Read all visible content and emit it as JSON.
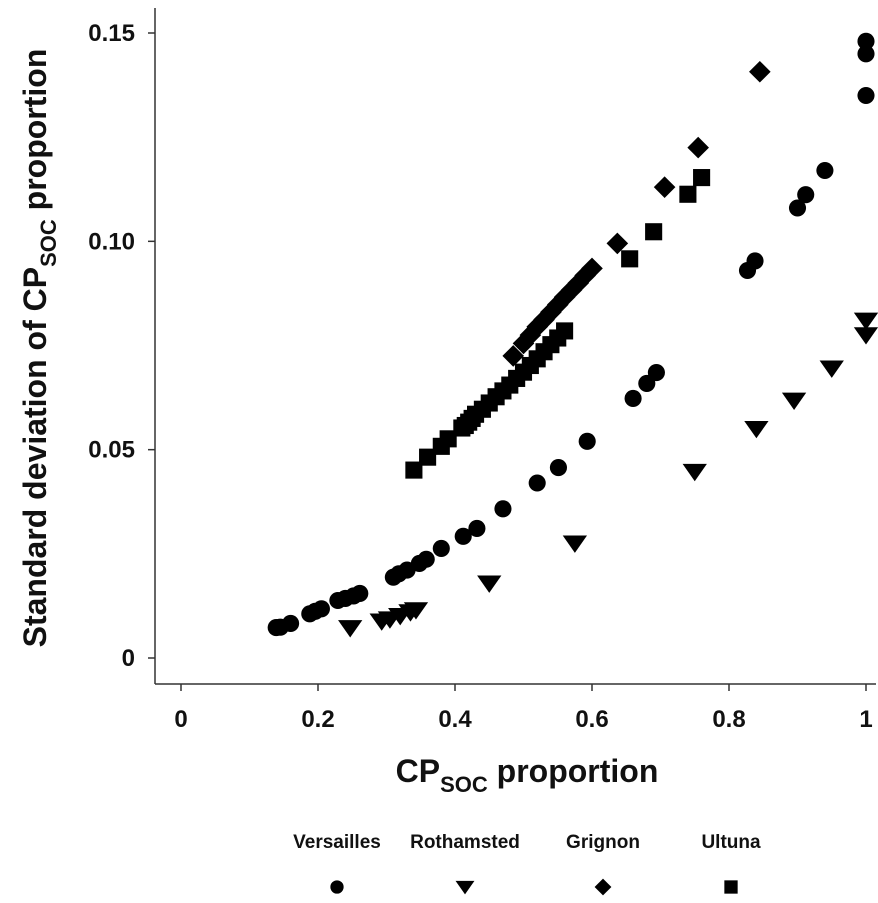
{
  "chart_data": {
    "type": "scatter",
    "xlabel_main": "CP",
    "xlabel_sub": "SOC",
    "xlabel_rest": " proportion",
    "ylabel_main": "Standard deviation of CP",
    "ylabel_sub": "SOC",
    "ylabel_rest": " proportion",
    "xlim": [
      0,
      1
    ],
    "ylim": [
      0,
      0.15
    ],
    "xticks": [
      {
        "value": 0,
        "label": "0"
      },
      {
        "value": 0.2,
        "label": "0.2"
      },
      {
        "value": 0.4,
        "label": "0.4"
      },
      {
        "value": 0.6,
        "label": "0.6"
      },
      {
        "value": 0.8,
        "label": "0.8"
      },
      {
        "value": 1,
        "label": "1"
      }
    ],
    "yticks": [
      {
        "value": 0,
        "label": "0"
      },
      {
        "value": 0.05,
        "label": "0.05"
      },
      {
        "value": 0.1,
        "label": "0.10"
      },
      {
        "value": 0.15,
        "label": "0.15"
      }
    ],
    "grid": false,
    "legend_position": "bottom",
    "series": [
      {
        "name": "Versailles",
        "marker": "circle",
        "color": "#000000",
        "x": [
          0.139,
          0.145,
          0.16,
          0.188,
          0.196,
          0.205,
          0.229,
          0.24,
          0.252,
          0.261,
          0.31,
          0.318,
          0.33,
          0.348,
          0.358,
          0.38,
          0.412,
          0.432,
          0.47,
          0.52,
          0.551,
          0.593,
          0.66,
          0.68,
          0.694,
          0.827,
          0.838,
          0.9,
          0.912,
          0.94,
          1.0,
          1.0,
          1.0
        ],
        "y": [
          0.0073,
          0.0074,
          0.0083,
          0.0106,
          0.0112,
          0.0118,
          0.0138,
          0.0143,
          0.0149,
          0.0155,
          0.0194,
          0.0202,
          0.0211,
          0.0227,
          0.0237,
          0.0263,
          0.0292,
          0.0311,
          0.0358,
          0.042,
          0.0457,
          0.052,
          0.0623,
          0.0659,
          0.0685,
          0.093,
          0.0953,
          0.108,
          0.1112,
          0.117,
          0.148,
          0.145,
          0.135
        ]
      },
      {
        "name": "Rothamsted",
        "marker": "triangle-down",
        "color": "#000000",
        "x": [
          0.247,
          0.293,
          0.305,
          0.32,
          0.335,
          0.343,
          0.45,
          0.575,
          0.75,
          0.84,
          0.895,
          0.95,
          1.0,
          1.0
        ],
        "y": [
          0.0072,
          0.0088,
          0.0093,
          0.0101,
          0.011,
          0.0115,
          0.0179,
          0.0275,
          0.0447,
          0.055,
          0.0618,
          0.0695,
          0.081,
          0.0775
        ]
      },
      {
        "name": "Grignon",
        "marker": "diamond",
        "color": "#000000",
        "x": [
          0.485,
          0.5,
          0.51,
          0.52,
          0.53,
          0.54,
          0.55,
          0.56,
          0.57,
          0.58,
          0.59,
          0.6,
          0.637,
          0.706,
          0.755,
          0.845
        ],
        "y": [
          0.0725,
          0.0755,
          0.0775,
          0.0795,
          0.0812,
          0.083,
          0.0848,
          0.0866,
          0.0883,
          0.09,
          0.0918,
          0.0935,
          0.0995,
          0.113,
          0.1225,
          0.1407
        ]
      },
      {
        "name": "Ultuna",
        "marker": "square",
        "color": "#000000",
        "x": [
          0.34,
          0.36,
          0.38,
          0.39,
          0.41,
          0.415,
          0.42,
          0.425,
          0.43,
          0.44,
          0.45,
          0.46,
          0.47,
          0.48,
          0.49,
          0.5,
          0.51,
          0.52,
          0.53,
          0.54,
          0.55,
          0.56,
          0.655,
          0.69,
          0.74,
          0.76
        ],
        "y": [
          0.0451,
          0.0482,
          0.0508,
          0.0526,
          0.0552,
          0.0558,
          0.0566,
          0.0575,
          0.0585,
          0.0597,
          0.0612,
          0.0627,
          0.0641,
          0.0655,
          0.0671,
          0.0686,
          0.0702,
          0.0718,
          0.0735,
          0.0752,
          0.0768,
          0.0785,
          0.0958,
          0.1023,
          0.1113,
          0.1153
        ]
      }
    ]
  }
}
